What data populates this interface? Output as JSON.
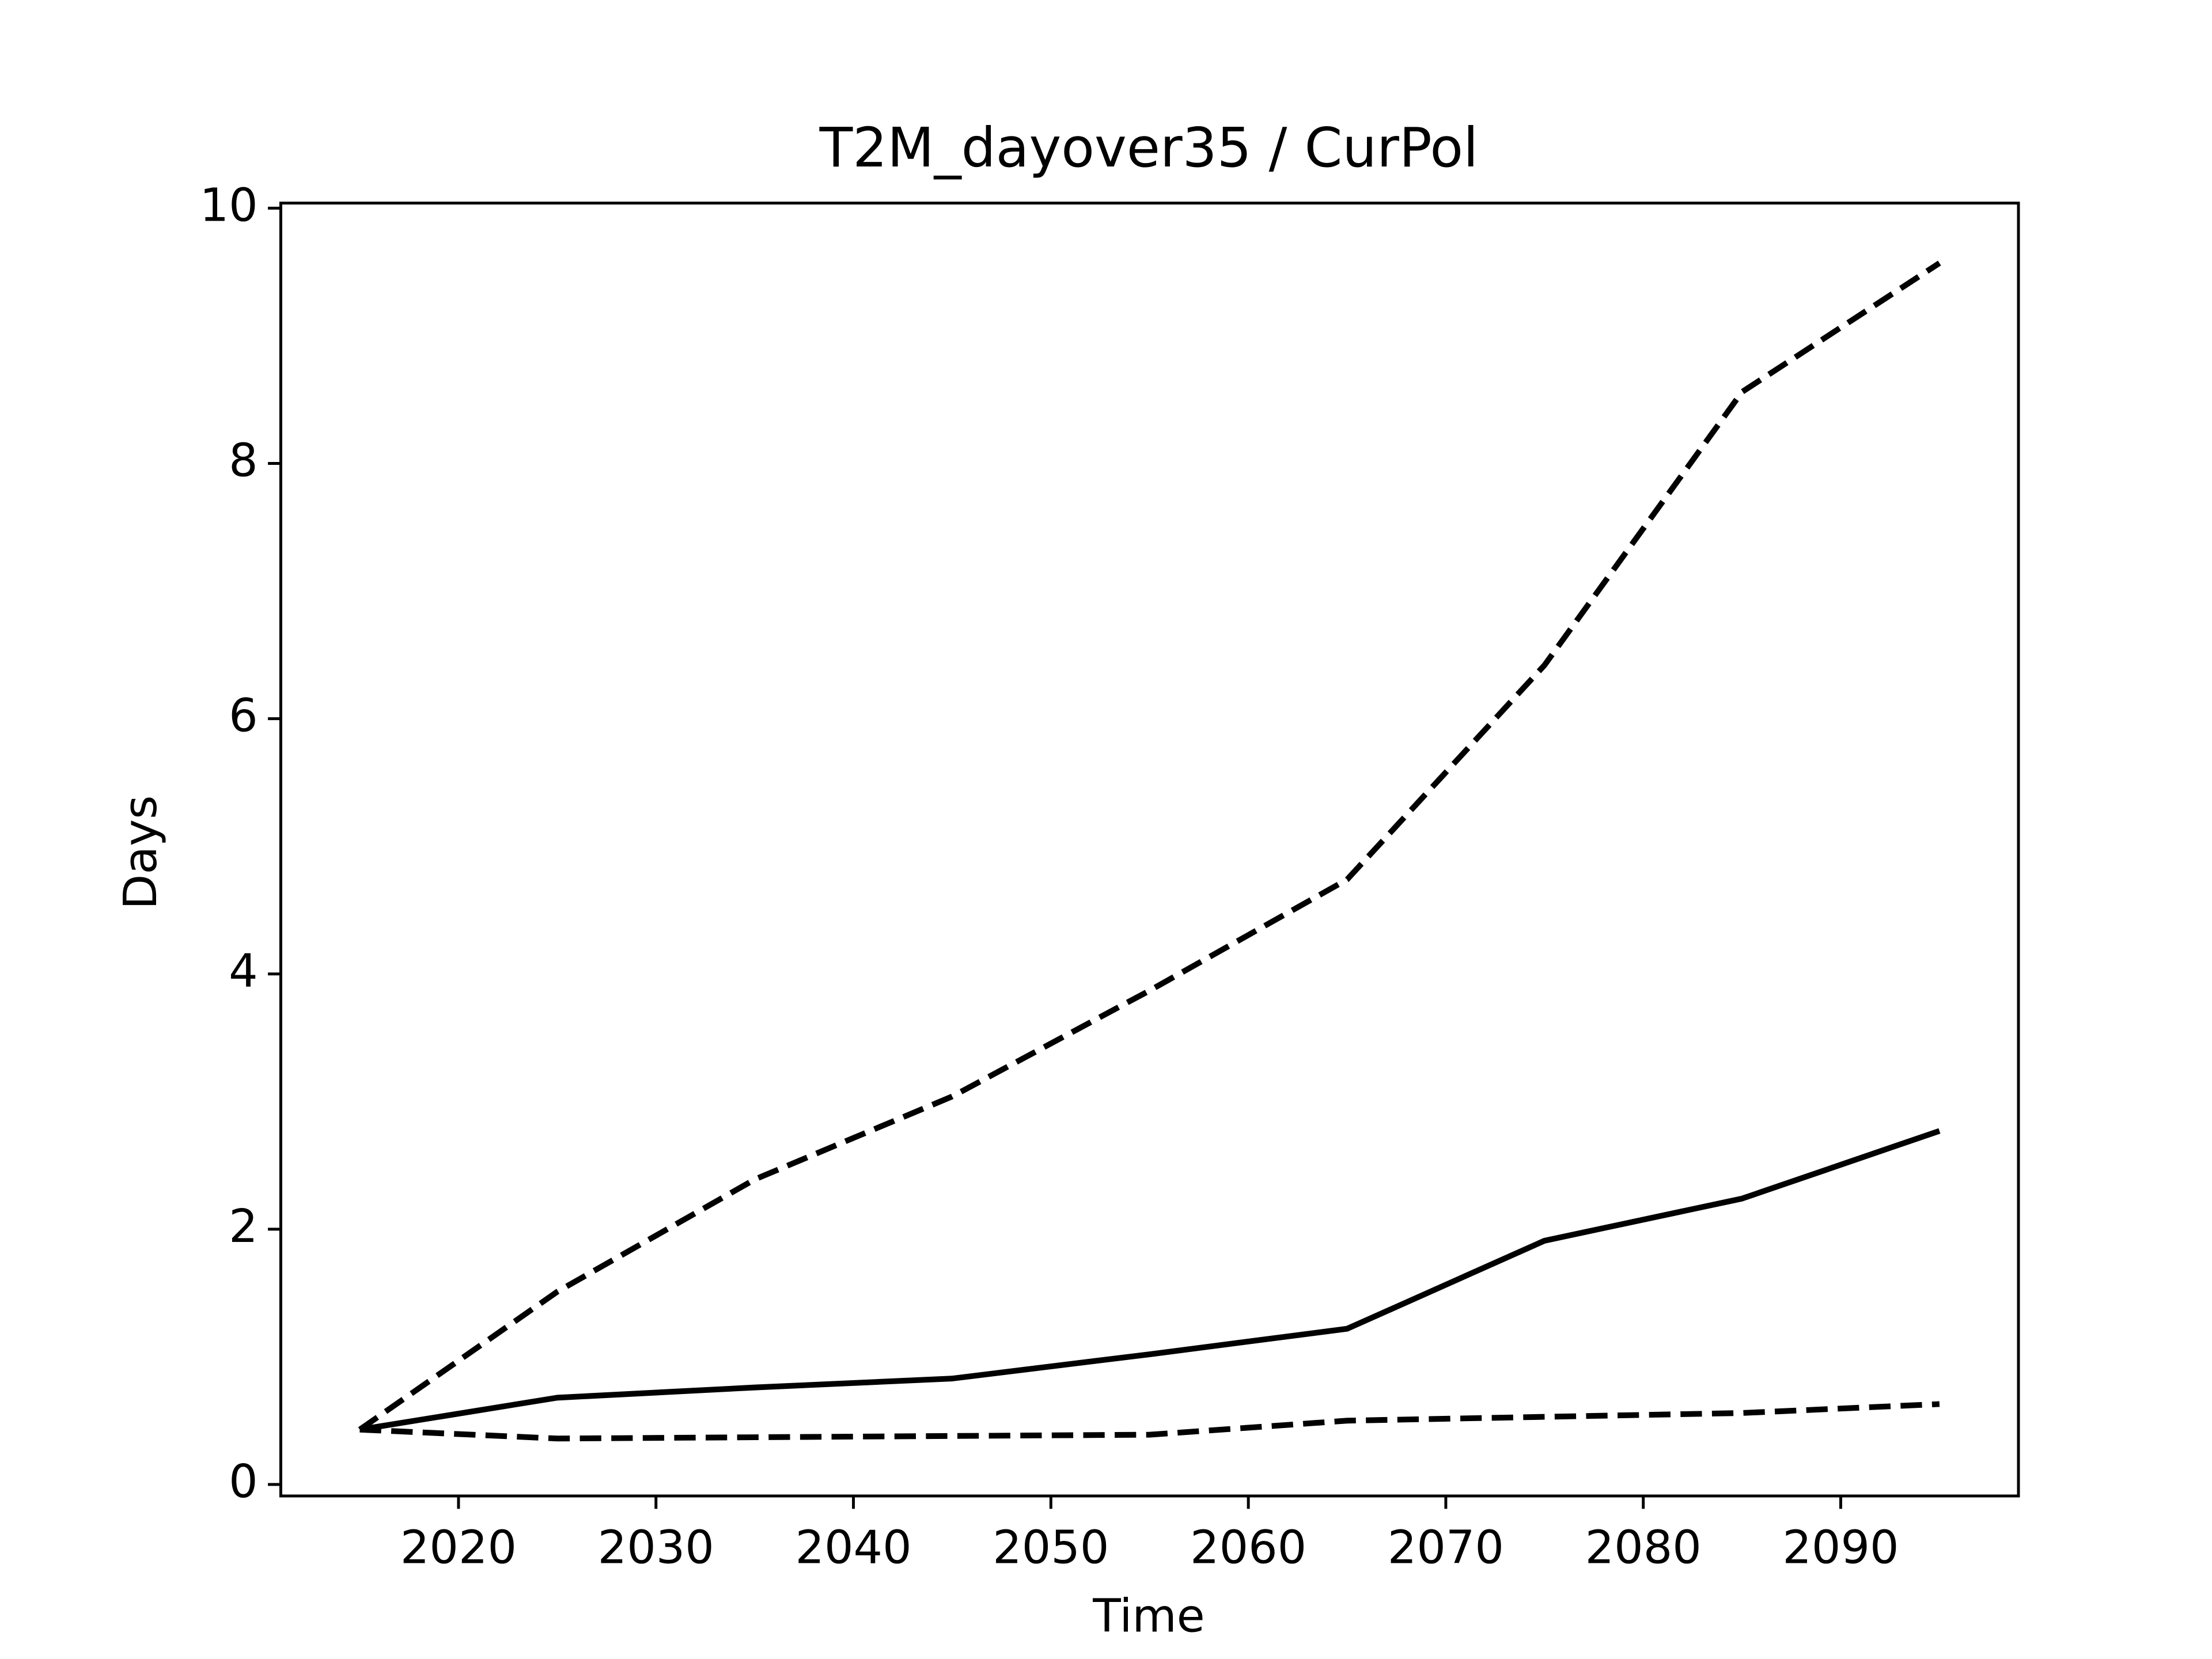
{
  "chart_data": {
    "type": "line",
    "title": "T2M_dayover35 / CurPol",
    "xlabel": "Time",
    "ylabel": "Days",
    "x": [
      2015,
      2025,
      2035,
      2045,
      2055,
      2065,
      2075,
      2085,
      2095
    ],
    "series": [
      {
        "color": "#000000",
        "dashed": true,
        "values": [
          0.43,
          1.51,
          2.39,
          3.04,
          3.87,
          4.74,
          6.42,
          8.56,
          9.57
        ]
      },
      {
        "color": "#000000",
        "dashed": false,
        "values": [
          0.43,
          0.68,
          0.76,
          0.83,
          1.02,
          1.22,
          1.91,
          2.24,
          2.77
        ]
      },
      {
        "color": "#000000",
        "dashed": true,
        "values": [
          0.43,
          0.36,
          0.37,
          0.38,
          0.39,
          0.5,
          0.53,
          0.56,
          0.63
        ]
      }
    ],
    "xlim": [
      2011,
      2099
    ],
    "xticks": [
      2020,
      2030,
      2040,
      2050,
      2060,
      2070,
      2080,
      2090
    ],
    "ylim": [
      -0.09,
      10.04
    ],
    "yticks": [
      0,
      2,
      4,
      6,
      8,
      10
    ],
    "grid": false
  }
}
